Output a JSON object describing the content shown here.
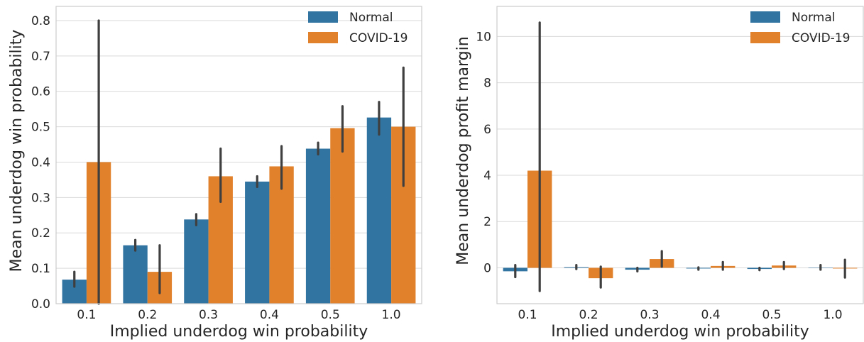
{
  "chart_data": [
    {
      "type": "bar",
      "title": "",
      "xlabel": "Implied underdog win probability",
      "ylabel": "Mean underdog win probability",
      "categories": [
        "0.1",
        "0.2",
        "0.3",
        "0.4",
        "0.5",
        "1.0"
      ],
      "ylim": [
        0,
        0.84
      ],
      "yticks": [
        0.0,
        0.1,
        0.2,
        0.3,
        0.4,
        0.5,
        0.6,
        0.7,
        0.8
      ],
      "ytick_labels": [
        "0.0",
        "0.1",
        "0.2",
        "0.3",
        "0.4",
        "0.5",
        "0.6",
        "0.7",
        "0.8"
      ],
      "grid": true,
      "legend_position": "top-right",
      "series": [
        {
          "name": "Normal",
          "color": "#3274a1",
          "values": [
            0.068,
            0.165,
            0.238,
            0.345,
            0.438,
            0.526
          ],
          "err_low": [
            0.048,
            0.15,
            0.222,
            0.33,
            0.422,
            0.478
          ],
          "err_high": [
            0.09,
            0.18,
            0.253,
            0.36,
            0.455,
            0.57
          ]
        },
        {
          "name": "COVID-19",
          "color": "#e1812c",
          "values": [
            0.4,
            0.09,
            0.36,
            0.388,
            0.496,
            0.5
          ],
          "err_low": [
            0.0,
            0.03,
            0.288,
            0.325,
            0.43,
            0.333
          ],
          "err_high": [
            0.8,
            0.165,
            0.438,
            0.445,
            0.558,
            0.667
          ]
        }
      ]
    },
    {
      "type": "bar",
      "title": "",
      "xlabel": "Implied underdog win probability",
      "ylabel": "Mean underdog profit margin",
      "categories": [
        "0.1",
        "0.2",
        "0.3",
        "0.4",
        "0.5",
        "1.0"
      ],
      "ylim": [
        -1.55,
        11.3
      ],
      "yticks": [
        0,
        2,
        4,
        6,
        8,
        10
      ],
      "ytick_labels": [
        "0",
        "2",
        "4",
        "6",
        "8",
        "10"
      ],
      "grid": true,
      "legend_position": "top-right",
      "series": [
        {
          "name": "Normal",
          "color": "#3274a1",
          "values": [
            -0.15,
            0.03,
            -0.08,
            -0.03,
            -0.05,
            -0.01
          ],
          "err_low": [
            -0.4,
            -0.05,
            -0.15,
            -0.08,
            -0.1,
            -0.08
          ],
          "err_high": [
            0.12,
            0.12,
            0.0,
            0.02,
            0.0,
            0.12
          ]
        },
        {
          "name": "COVID-19",
          "color": "#e1812c",
          "values": [
            4.2,
            -0.45,
            0.38,
            0.08,
            0.1,
            -0.03
          ],
          "err_low": [
            -1.0,
            -0.85,
            0.05,
            -0.08,
            -0.05,
            -0.42
          ],
          "err_high": [
            10.6,
            0.05,
            0.72,
            0.25,
            0.25,
            0.35
          ]
        }
      ]
    }
  ]
}
